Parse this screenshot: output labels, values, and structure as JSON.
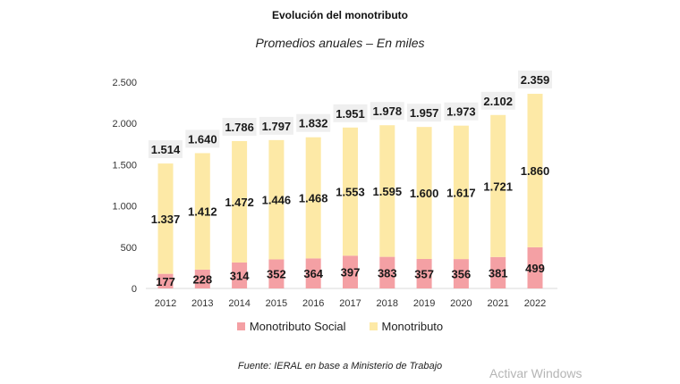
{
  "chart_data": {
    "type": "bar",
    "stacked": true,
    "title": "Evolución del monotributo",
    "subtitle": "Promedios anuales – En miles",
    "xlabel": "",
    "ylabel": "",
    "ylim": [
      0,
      2500
    ],
    "yticks": [
      0,
      500,
      1000,
      1500,
      2000,
      2500
    ],
    "ytick_labels": [
      "0",
      "500",
      "1.000",
      "1.500",
      "2.000",
      "2.500"
    ],
    "grid": false,
    "legend_position": "bottom",
    "categories": [
      "2012",
      "2013",
      "2014",
      "2015",
      "2016",
      "2017",
      "2018",
      "2019",
      "2020",
      "2021",
      "2022"
    ],
    "series": [
      {
        "name": "Monotributo Social",
        "color": "#f4a0a4",
        "values": [
          177,
          228,
          314,
          352,
          364,
          397,
          383,
          357,
          356,
          381,
          499
        ],
        "labels": [
          "177",
          "228",
          "314",
          "352",
          "364",
          "397",
          "383",
          "357",
          "356",
          "381",
          "499"
        ]
      },
      {
        "name": "Monotributo",
        "color": "#fde9a6",
        "values": [
          1337,
          1412,
          1472,
          1446,
          1468,
          1553,
          1595,
          1600,
          1617,
          1721,
          1860
        ],
        "labels": [
          "1.337",
          "1.412",
          "1.472",
          "1.446",
          "1.468",
          "1.553",
          "1.595",
          "1.600",
          "1.617",
          "1.721",
          "1.860"
        ]
      }
    ],
    "totals": [
      1514,
      1640,
      1786,
      1797,
      1832,
      1951,
      1978,
      1957,
      1973,
      2102,
      2359
    ],
    "total_labels": [
      "1.514",
      "1.640",
      "1.786",
      "1.797",
      "1.832",
      "1.951",
      "1.978",
      "1.957",
      "1.973",
      "2.102",
      "2.359"
    ],
    "source": "Fuente: IERAL en base a Ministerio de Trabajo"
  },
  "watermark": "Activar Windows"
}
